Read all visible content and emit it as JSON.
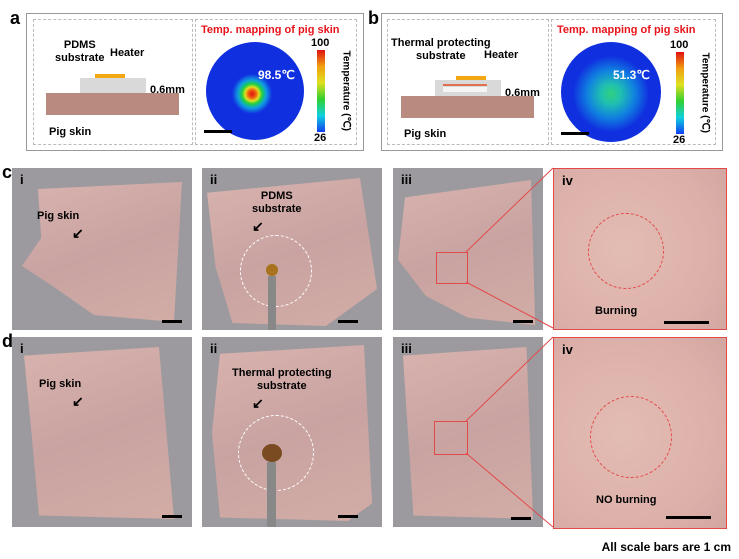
{
  "panels": {
    "a": {
      "label": "a",
      "substrate": "PDMS\nsubstrate",
      "heater": "Heater",
      "thickness": "0.6mm",
      "skin": "Pig skin",
      "map_title": "Temp. mapping of pig skin",
      "peak": "98.5℃",
      "cbar_max": "100",
      "cbar_min": "26",
      "cbar_label": "Temperature (℃)"
    },
    "b": {
      "label": "b",
      "substrate": "Thermal protecting\nsubstrate",
      "heater": "Heater",
      "thickness": "0.6mm",
      "skin": "Pig skin",
      "map_title": "Temp. mapping of pig skin",
      "peak": "51.3℃",
      "cbar_max": "100",
      "cbar_min": "26",
      "cbar_label": "Temperature (℃)"
    },
    "c": {
      "label": "c",
      "i": "i",
      "ii": "ii",
      "iii": "iii",
      "iv": "iv",
      "skin": "Pig skin",
      "substrate": "PDMS\nsubstrate",
      "result": "Burning"
    },
    "d": {
      "label": "d",
      "i": "i",
      "ii": "ii",
      "iii": "iii",
      "iv": "iv",
      "skin": "Pig skin",
      "substrate": "Thermal protecting\nsubstrate",
      "result": "NO burning"
    }
  },
  "colors": {
    "heater": "#f3a712",
    "skin": "#b98a80",
    "substrate": "#d9d9d9",
    "title": "#e8141b"
  },
  "footer": "All scale bars are 1 cm"
}
